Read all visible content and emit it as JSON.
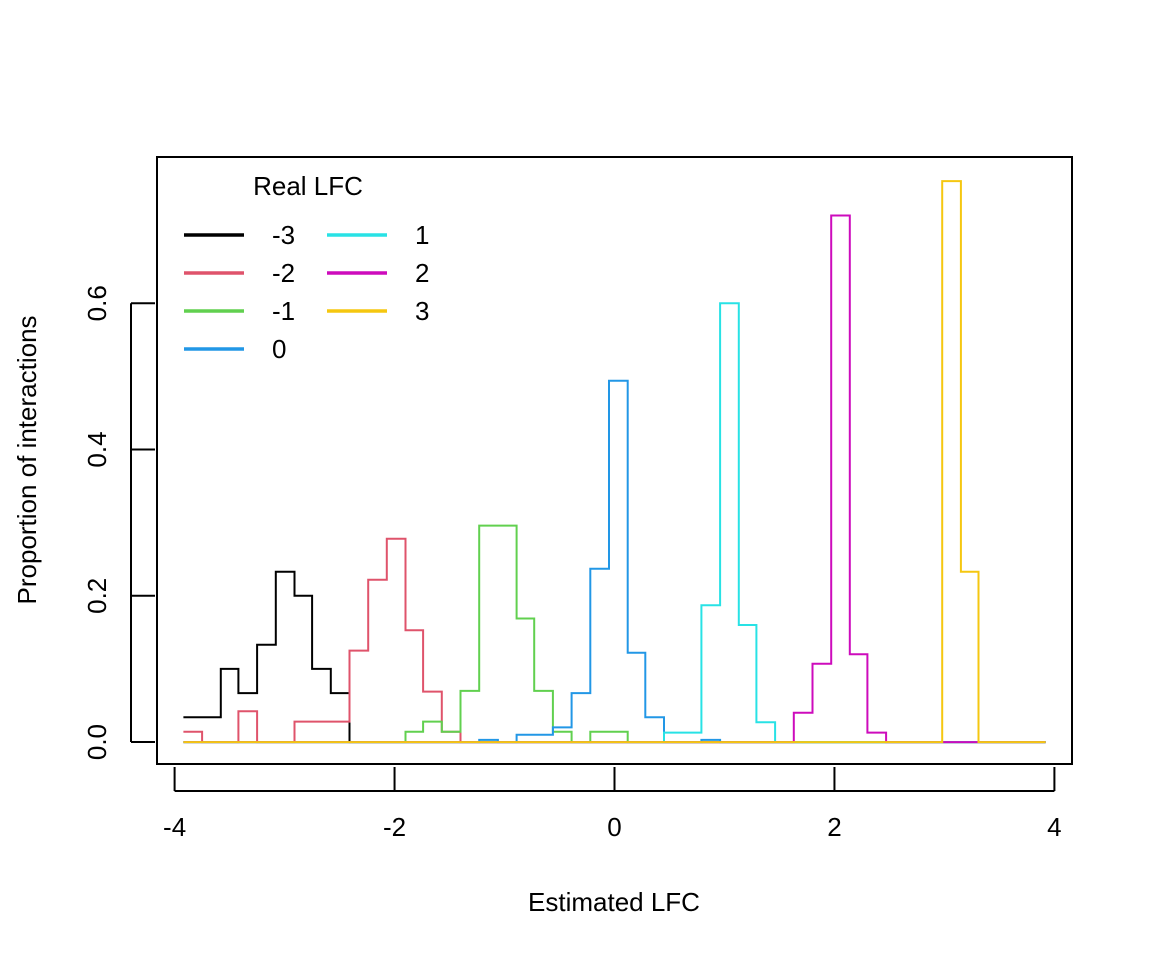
{
  "chart_data": {
    "type": "line",
    "title": "",
    "xlabel": "Estimated LFC",
    "ylabel": "Proportion of interactions",
    "xlim": [
      -4.16,
      4.16
    ],
    "ylim": [
      -0.03,
      0.8
    ],
    "x_ticks": [
      -4,
      -2,
      0,
      2,
      4
    ],
    "x_tick_labels": [
      "-4",
      "-2",
      "0",
      "2",
      "4"
    ],
    "y_ticks": [
      0.0,
      0.2,
      0.4,
      0.6
    ],
    "y_tick_labels": [
      "0.0",
      "0.2",
      "0.4",
      "0.6"
    ],
    "grid": false,
    "legend": {
      "title": "Real LFC",
      "position": "top-left",
      "columns": 2
    },
    "bin_edges": [
      -3.92,
      -3.75,
      -3.58,
      -3.42,
      -3.25,
      -3.08,
      -2.91,
      -2.75,
      -2.58,
      -2.41,
      -2.24,
      -2.07,
      -1.9,
      -1.74,
      -1.57,
      -1.4,
      -1.23,
      -1.06,
      -0.89,
      -0.73,
      -0.56,
      -0.39,
      -0.22,
      -0.05,
      0.12,
      0.28,
      0.45,
      0.62,
      0.79,
      0.96,
      1.13,
      1.29,
      1.46,
      1.63,
      1.8,
      1.97,
      2.14,
      2.3,
      2.47,
      2.64,
      2.81,
      2.98,
      3.15,
      3.31,
      3.48,
      3.65,
      3.82,
      3.92
    ],
    "series": [
      {
        "name": "-3",
        "color": "#000000",
        "values": [
          0.034,
          0.034,
          0.1,
          0.067,
          0.133,
          0.233,
          0.2,
          0.1,
          0.067,
          0,
          0,
          0,
          0,
          0,
          0,
          0,
          0,
          0,
          0,
          0,
          0,
          0,
          0,
          0,
          0,
          0,
          0,
          0,
          0,
          0,
          0,
          0,
          0,
          0,
          0,
          0,
          0,
          0,
          0,
          0,
          0,
          0,
          0,
          0,
          0,
          0,
          0
        ]
      },
      {
        "name": "-2",
        "color": "#DF536B",
        "values": [
          0.014,
          0,
          0,
          0.042,
          0,
          0,
          0.028,
          0.028,
          0.028,
          0.125,
          0.222,
          0.278,
          0.153,
          0.069,
          0.014,
          0,
          0,
          0,
          0,
          0,
          0,
          0,
          0,
          0,
          0,
          0,
          0,
          0,
          0,
          0,
          0,
          0,
          0,
          0,
          0,
          0,
          0,
          0,
          0,
          0,
          0,
          0,
          0,
          0,
          0,
          0,
          0
        ]
      },
      {
        "name": "-1",
        "color": "#61D04F",
        "values": [
          0,
          0,
          0,
          0,
          0,
          0,
          0,
          0,
          0,
          0,
          0,
          0,
          0.014,
          0.028,
          0.014,
          0.07,
          0.296,
          0.296,
          0.169,
          0.07,
          0.014,
          0,
          0.014,
          0.014,
          0,
          0,
          0,
          0,
          0,
          0,
          0,
          0,
          0,
          0,
          0,
          0,
          0,
          0,
          0,
          0,
          0,
          0,
          0,
          0,
          0,
          0,
          0
        ]
      },
      {
        "name": "0",
        "color": "#2297E6",
        "values": [
          0,
          0,
          0,
          0,
          0,
          0,
          0,
          0,
          0,
          0,
          0,
          0,
          0,
          0,
          0,
          0,
          0.003,
          0,
          0.01,
          0.01,
          0.02,
          0.067,
          0.237,
          0.494,
          0.122,
          0.034,
          0,
          0,
          0.003,
          0,
          0,
          0,
          0,
          0,
          0,
          0,
          0,
          0,
          0,
          0,
          0,
          0,
          0,
          0,
          0,
          0,
          0
        ]
      },
      {
        "name": "1",
        "color": "#28E2E5",
        "values": [
          0,
          0,
          0,
          0,
          0,
          0,
          0,
          0,
          0,
          0,
          0,
          0,
          0,
          0,
          0,
          0,
          0,
          0,
          0,
          0,
          0,
          0,
          0,
          0,
          0,
          0,
          0.013,
          0.013,
          0.187,
          0.6,
          0.16,
          0.027,
          0,
          0,
          0,
          0,
          0,
          0,
          0,
          0,
          0,
          0,
          0,
          0,
          0,
          0,
          0
        ]
      },
      {
        "name": "2",
        "color": "#CD0BBC",
        "values": [
          0,
          0,
          0,
          0,
          0,
          0,
          0,
          0,
          0,
          0,
          0,
          0,
          0,
          0,
          0,
          0,
          0,
          0,
          0,
          0,
          0,
          0,
          0,
          0,
          0,
          0,
          0,
          0,
          0,
          0,
          0,
          0,
          0,
          0.04,
          0.107,
          0.72,
          0.12,
          0.013,
          0,
          0,
          0,
          0,
          0,
          0,
          0,
          0,
          0
        ]
      },
      {
        "name": "3",
        "color": "#F5C710",
        "values": [
          0,
          0,
          0,
          0,
          0,
          0,
          0,
          0,
          0,
          0,
          0,
          0,
          0,
          0,
          0,
          0,
          0,
          0,
          0,
          0,
          0,
          0,
          0,
          0,
          0,
          0,
          0,
          0,
          0,
          0,
          0,
          0,
          0,
          0,
          0,
          0,
          0,
          0,
          0,
          0,
          0,
          0.767,
          0.233,
          0,
          0,
          0,
          0
        ]
      }
    ]
  }
}
